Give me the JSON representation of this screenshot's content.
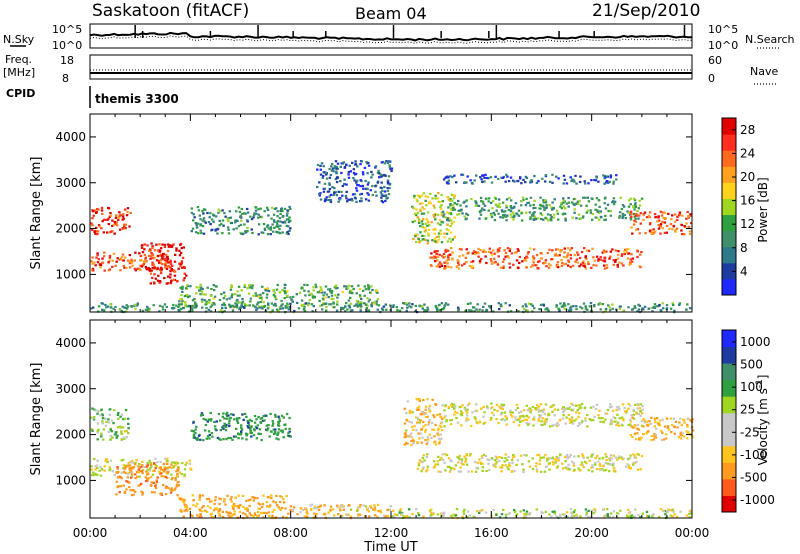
{
  "header": {
    "title": "Saskatoon (fitACF)",
    "beam": "Beam 04",
    "date": "21/Sep/2010"
  },
  "strip_noise": {
    "left_label": "N.Sky",
    "right_label": "N.Search",
    "left_ticks": [
      "10^5",
      "10^0"
    ],
    "right_ticks": [
      "10^5",
      "10^0"
    ]
  },
  "strip_freq": {
    "left_label_1": "Freq.",
    "left_label_2": "[MHz]",
    "right_label": "Nave",
    "left_ticks": [
      "18",
      "8"
    ],
    "right_ticks": [
      "60",
      "0"
    ]
  },
  "cpid": {
    "label": "CPID",
    "value": "themis 3300"
  },
  "colors": {
    "power_scale": [
      "#1e28ff",
      "#1e3ca0",
      "#2f7a8a",
      "#3f8f6a",
      "#2fa040",
      "#9fd61f",
      "#ffd21e",
      "#ffa020",
      "#ff6a1e",
      "#ff2d1e",
      "#e00000"
    ],
    "velocity_scale": [
      "#e00000",
      "#ff5a1e",
      "#ff9a20",
      "#ffc41e",
      "#c8c8c8",
      "#c8c8c8",
      "#9fd61f",
      "#2fa040",
      "#3f8f6a",
      "#1e3ca0",
      "#1e28ff"
    ]
  },
  "chart_data": [
    {
      "type": "heatmap",
      "name_on_colorbar": "Power [dB]",
      "ylabel": "Slant Range [km]",
      "ylim": [
        180,
        4500
      ],
      "y_ticks": [
        "1000",
        "2000",
        "3000",
        "4000"
      ],
      "x_ticks": [
        "00:00",
        "04:00",
        "08:00",
        "12:00",
        "16:00",
        "20:00",
        "00:00"
      ],
      "colorbar_ticks": [
        "4",
        "8",
        "12",
        "16",
        "20",
        "24",
        "28"
      ],
      "colorbar_range": [
        0,
        30
      ],
      "regions": [
        {
          "t": [
            0.0,
            1.6
          ],
          "r": [
            1900,
            2500
          ],
          "value": 26
        },
        {
          "t": [
            0.0,
            3.3
          ],
          "r": [
            1100,
            1500
          ],
          "value": 24
        },
        {
          "t": [
            2.0,
            3.8
          ],
          "r": [
            800,
            1700
          ],
          "value": 28
        },
        {
          "t": [
            3.5,
            11.5
          ],
          "r": [
            300,
            800
          ],
          "value": 12
        },
        {
          "t": [
            4.0,
            8.0
          ],
          "r": [
            1900,
            2500
          ],
          "value": 9
        },
        {
          "t": [
            9.0,
            12.0
          ],
          "r": [
            2600,
            3500
          ],
          "value": 5
        },
        {
          "t": [
            12.8,
            14.5
          ],
          "r": [
            1700,
            2800
          ],
          "value": 16
        },
        {
          "t": [
            13.5,
            22.0
          ],
          "r": [
            1150,
            1600
          ],
          "value": 24
        },
        {
          "t": [
            14.0,
            22.0
          ],
          "r": [
            2200,
            2700
          ],
          "value": 11
        },
        {
          "t": [
            14.0,
            21.0
          ],
          "r": [
            3000,
            3200
          ],
          "value": 5
        },
        {
          "t": [
            21.5,
            24.0
          ],
          "r": [
            1900,
            2400
          ],
          "value": 24
        },
        {
          "t": [
            0.0,
            24.0
          ],
          "r": [
            200,
            400
          ],
          "value": 10
        }
      ]
    },
    {
      "type": "heatmap",
      "name_on_colorbar": "Velocity [m s^-1]",
      "ylabel": "Slant Range [km]",
      "ylim": [
        180,
        4500
      ],
      "y_ticks": [
        "1000",
        "2000",
        "3000",
        "4000"
      ],
      "x_ticks": [
        "00:00",
        "04:00",
        "08:00",
        "12:00",
        "16:00",
        "20:00",
        "00:00"
      ],
      "xlabel": "Time UT",
      "colorbar_ticks": [
        "1000",
        "500",
        "100",
        "25",
        "-25",
        "-100",
        "-500",
        "-1000"
      ],
      "regions": [
        {
          "t": [
            0.0,
            1.5
          ],
          "r": [
            1900,
            2600
          ],
          "value": 100
        },
        {
          "t": [
            0.0,
            4.0
          ],
          "r": [
            1100,
            1500
          ],
          "value": 0
        },
        {
          "t": [
            1.0,
            3.5
          ],
          "r": [
            700,
            1400
          ],
          "value": -300
        },
        {
          "t": [
            3.5,
            8.0
          ],
          "r": [
            200,
            700
          ],
          "value": -200
        },
        {
          "t": [
            4.0,
            8.0
          ],
          "r": [
            1900,
            2500
          ],
          "value": 300
        },
        {
          "t": [
            8.0,
            12.0
          ],
          "r": [
            200,
            500
          ],
          "value": -100
        },
        {
          "t": [
            12.5,
            14.0
          ],
          "r": [
            1800,
            2800
          ],
          "value": -100
        },
        {
          "t": [
            13.0,
            22.0
          ],
          "r": [
            1200,
            1600
          ],
          "value": 0
        },
        {
          "t": [
            14.0,
            22.0
          ],
          "r": [
            2200,
            2700
          ],
          "value": 0
        },
        {
          "t": [
            21.5,
            24.0
          ],
          "r": [
            1900,
            2400
          ],
          "value": -150
        },
        {
          "t": [
            12.0,
            24.0
          ],
          "r": [
            200,
            400
          ],
          "value": 50
        }
      ]
    }
  ]
}
